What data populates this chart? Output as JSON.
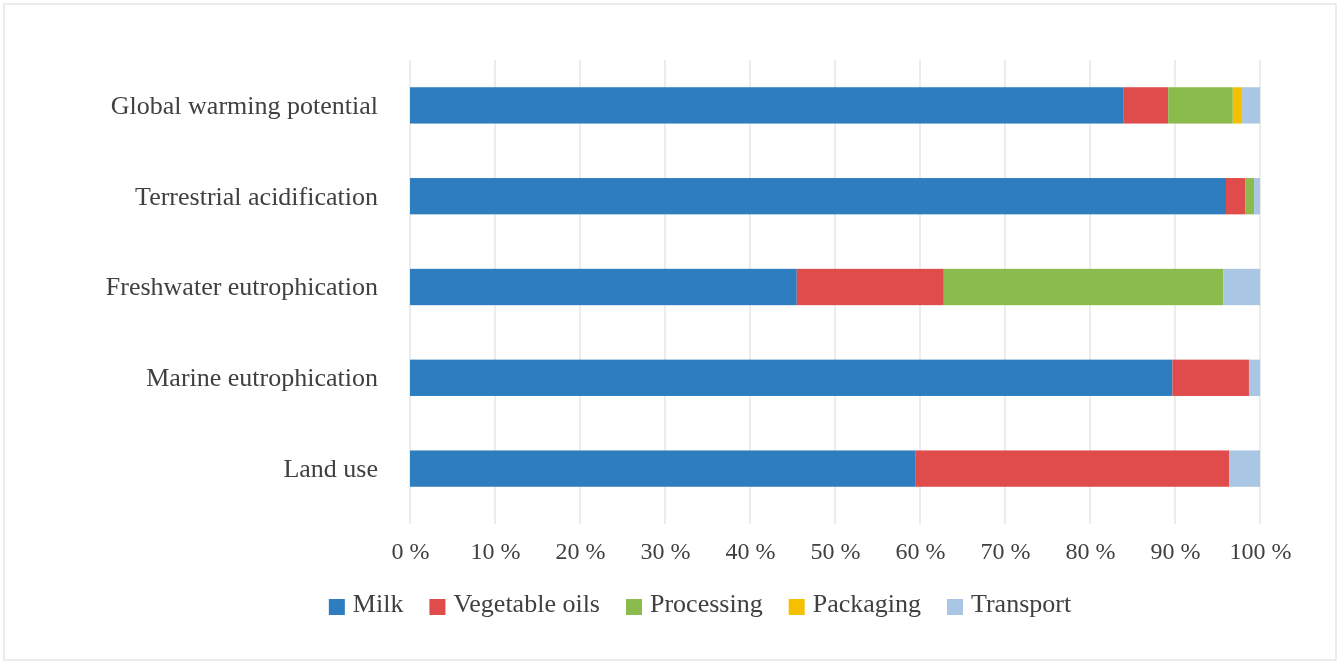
{
  "chart_data": {
    "type": "bar",
    "orientation": "horizontal",
    "stacked": true,
    "categories": [
      "Global warming potential",
      "Terrestrial acidification",
      "Freshwater eutrophication",
      "Marine eutrophication",
      "Land use"
    ],
    "series": [
      {
        "name": "Milk",
        "color": "#2e7ebf",
        "values": [
          83.9,
          96.0,
          45.5,
          89.7,
          59.5
        ]
      },
      {
        "name": "Vegetable oils",
        "color": "#e04b4b",
        "values": [
          5.3,
          2.3,
          17.3,
          9.0,
          36.9
        ]
      },
      {
        "name": "Processing",
        "color": "#8bbb4c",
        "values": [
          7.6,
          1.0,
          32.9,
          0,
          0
        ]
      },
      {
        "name": "Packaging",
        "color": "#f5c000",
        "values": [
          1.1,
          0,
          0,
          0,
          0
        ]
      },
      {
        "name": "Transport",
        "color": "#a9c6e4",
        "values": [
          2.1,
          0.7,
          4.3,
          1.3,
          3.6
        ]
      }
    ],
    "xlim": [
      0,
      100
    ],
    "xticks": [
      {
        "value": 0,
        "label": "0 %"
      },
      {
        "value": 10,
        "label": "10 %"
      },
      {
        "value": 20,
        "label": "20 %"
      },
      {
        "value": 30,
        "label": "30 %"
      },
      {
        "value": 40,
        "label": "40 %"
      },
      {
        "value": 50,
        "label": "50 %"
      },
      {
        "value": 60,
        "label": "60 %"
      },
      {
        "value": 70,
        "label": "70 %"
      },
      {
        "value": 80,
        "label": "80 %"
      },
      {
        "value": 90,
        "label": "90 %"
      },
      {
        "value": 100,
        "label": "100 %"
      }
    ],
    "grid": "x",
    "legend": "bottom"
  }
}
